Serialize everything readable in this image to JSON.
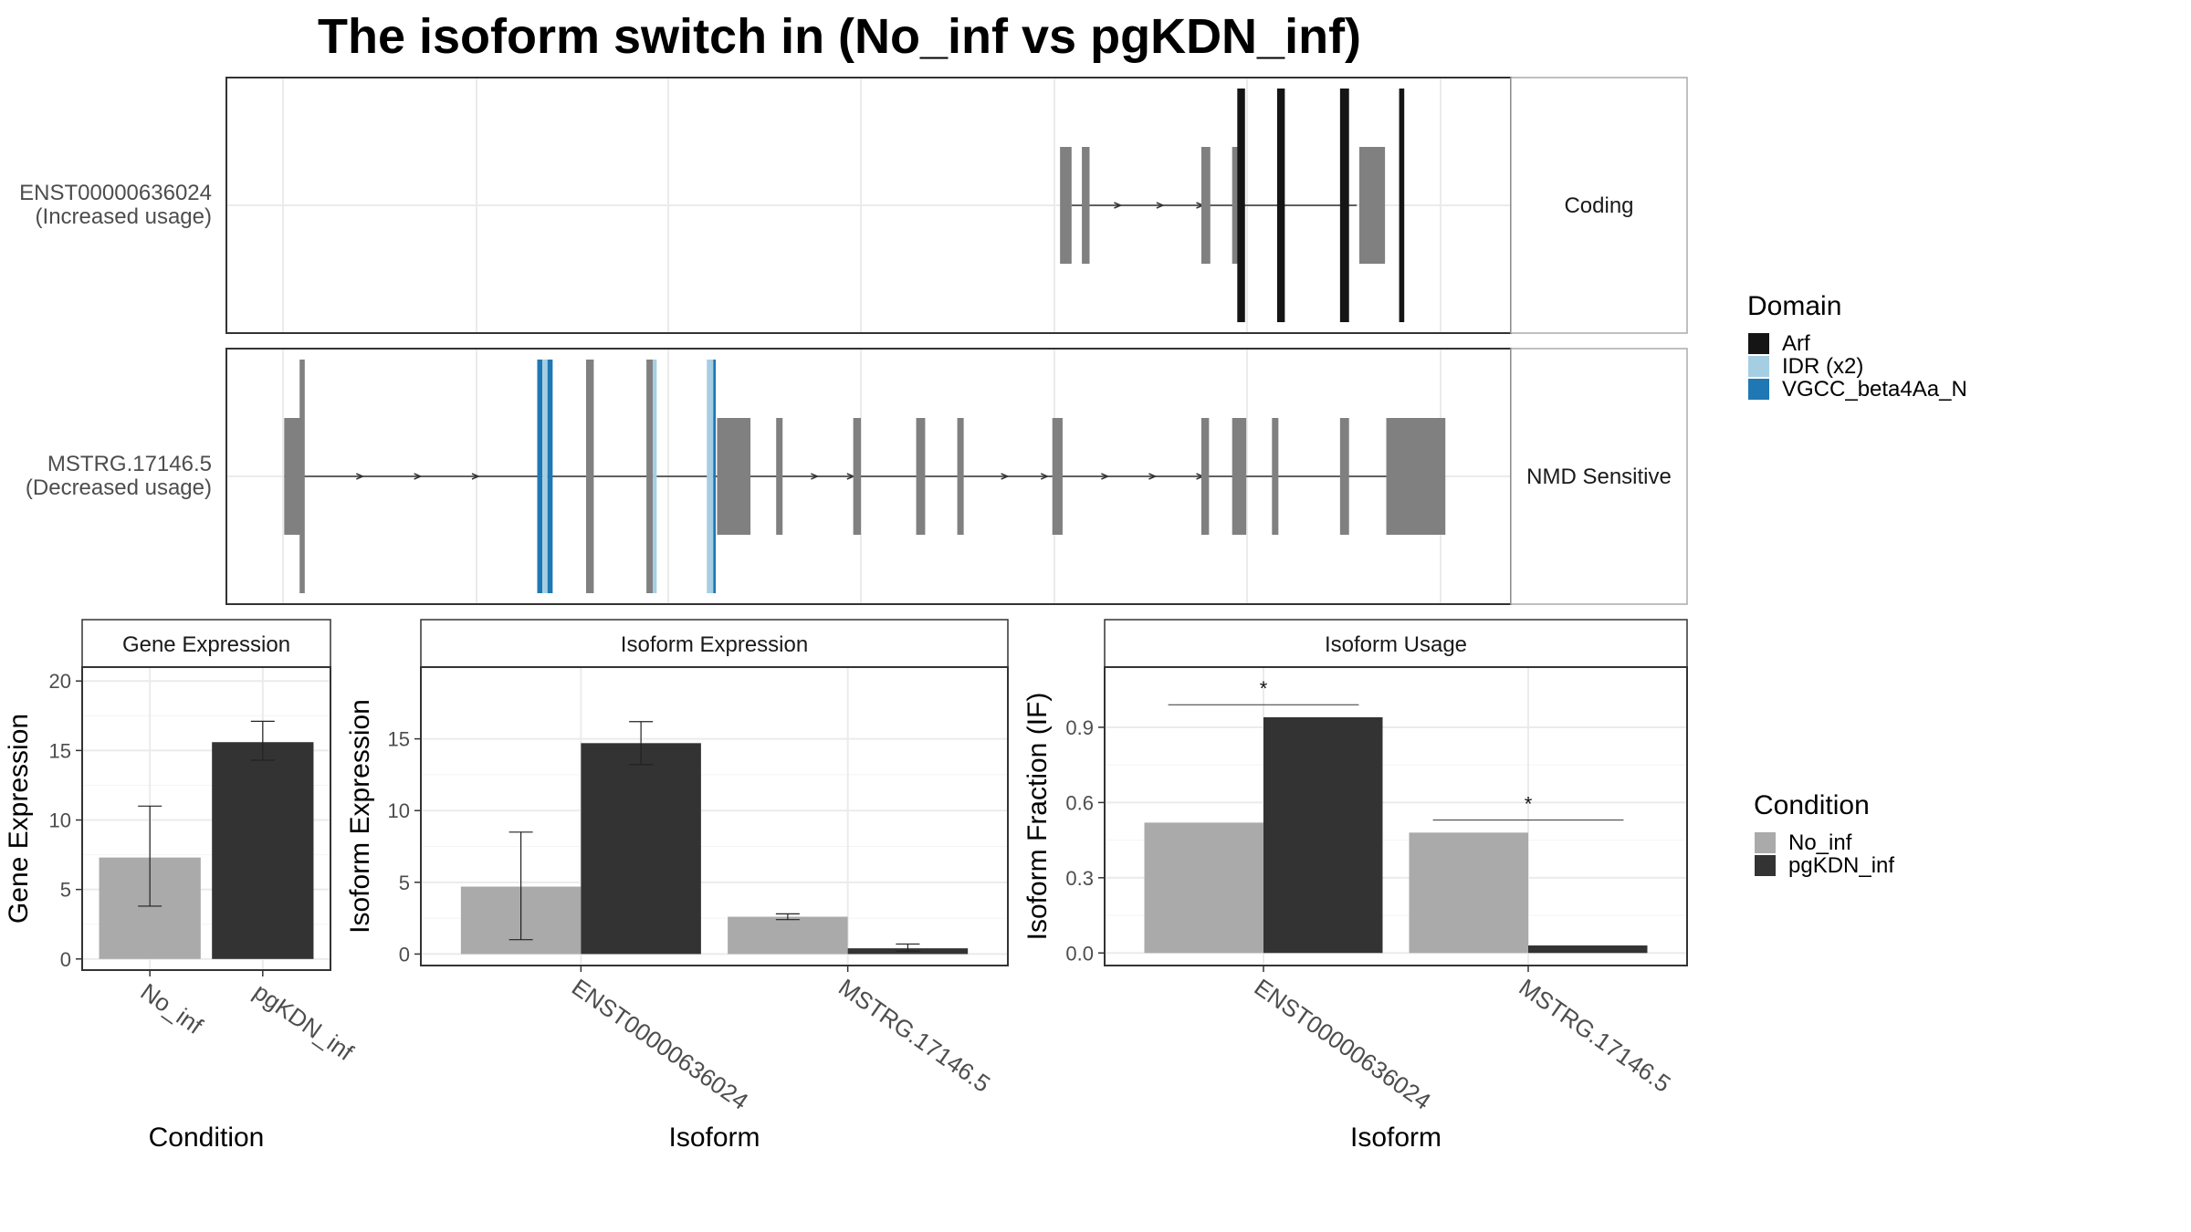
{
  "title": "The isoform switch in  (No_inf vs pgKDN_inf)",
  "colors": {
    "no_inf": "#aaaaaa",
    "pgkdn_inf": "#333333",
    "exon": "#808080",
    "arf": "#151515",
    "idr": "#a6cee3",
    "vgcc": "#1f78b4",
    "grid": "#ebebeb",
    "panel_border": "#333333",
    "strip_border": "#aaaaaa"
  },
  "domain_legend": {
    "title": "Domain",
    "entries": [
      {
        "label": "Arf",
        "color": "#151515"
      },
      {
        "label": "IDR (x2)",
        "color": "#a6cee3"
      },
      {
        "label": "VGCC_beta4Aa_N",
        "color": "#1f78b4"
      }
    ]
  },
  "condition_legend": {
    "title": "Condition",
    "entries": [
      {
        "label": "No_inf",
        "color": "#aaaaaa"
      },
      {
        "label": "pgKDN_inf",
        "color": "#333333"
      }
    ]
  },
  "chart_data": [
    {
      "type": "isoform_structure",
      "isoforms": [
        {
          "id": "ENST00000636024",
          "label_line1": "ENST00000636024",
          "label_line2": "(Increased usage)",
          "strip": "Coding",
          "intron_span": [
            0.658,
            0.88
          ],
          "exons": [
            [
              0.649,
              0.658
            ],
            [
              0.666,
              0.672
            ],
            [
              0.759,
              0.766
            ],
            [
              0.783,
              0.789
            ],
            [
              0.882,
              0.902
            ]
          ],
          "domains": [
            {
              "span": [
                0.787,
                0.793
              ],
              "type": "arf",
              "tall": true
            },
            {
              "span": [
                0.818,
                0.824
              ],
              "type": "arf",
              "tall": true
            },
            {
              "span": [
                0.867,
                0.874
              ],
              "type": "arf",
              "tall": true
            },
            {
              "span": [
                0.913,
                0.917
              ],
              "type": "arf",
              "tall": true
            }
          ],
          "arrows": [
            0.694,
            0.727,
            0.758
          ]
        },
        {
          "id": "MSTRG.17146.5",
          "label_line1": "MSTRG.17146.5",
          "label_line2": "(Decreased usage)",
          "strip": "NMD Sensitive",
          "intron_span": [
            0.045,
            0.903
          ],
          "exons": [
            [
              0.045,
              0.058
            ],
            [
              0.382,
              0.408
            ],
            [
              0.428,
              0.433
            ],
            [
              0.488,
              0.494
            ],
            [
              0.537,
              0.544
            ],
            [
              0.569,
              0.574
            ],
            [
              0.643,
              0.651
            ],
            [
              0.759,
              0.765
            ],
            [
              0.783,
              0.794
            ],
            [
              0.814,
              0.819
            ],
            [
              0.867,
              0.874
            ],
            [
              0.903,
              0.949
            ]
          ],
          "domains": [
            {
              "span": [
                0.057,
                0.061
              ],
              "type": "exon",
              "tall": true
            },
            {
              "span": [
                0.242,
                0.246
              ],
              "type": "vgcc",
              "tall": true
            },
            {
              "span": [
                0.246,
                0.25
              ],
              "type": "idr",
              "tall": true
            },
            {
              "span": [
                0.25,
                0.254
              ],
              "type": "vgcc",
              "tall": true
            },
            {
              "span": [
                0.28,
                0.286
              ],
              "type": "exon",
              "tall": true
            },
            {
              "span": [
                0.327,
                0.332
              ],
              "type": "exon",
              "tall": true
            },
            {
              "span": [
                0.332,
                0.335
              ],
              "type": "idr",
              "tall": true
            },
            {
              "span": [
                0.374,
                0.379
              ],
              "type": "idr",
              "tall": true
            },
            {
              "span": [
                0.379,
                0.381
              ],
              "type": "vgcc",
              "tall": true
            }
          ],
          "arrows": [
            0.104,
            0.149,
            0.194,
            0.458,
            0.486,
            0.606,
            0.637,
            0.684,
            0.721,
            0.758
          ]
        }
      ]
    },
    {
      "type": "bar",
      "strip": "Gene Expression",
      "xlabel": "Condition",
      "ylabel": "Gene Expression",
      "categories": [
        "No_inf",
        "pgKDN_inf"
      ],
      "values": [
        7.3,
        15.6
      ],
      "error_low": [
        3.8,
        14.3
      ],
      "error_high": [
        11.0,
        17.1
      ],
      "ylim": [
        -0.8,
        21.0
      ],
      "yticks": [
        0,
        5,
        10,
        15,
        20
      ]
    },
    {
      "type": "bar",
      "strip": "Isoform Expression",
      "xlabel": "Isoform",
      "ylabel": "Isoform Expression",
      "categories": [
        "ENST00000636024",
        "MSTRG.17146.5"
      ],
      "series": [
        {
          "name": "No_inf",
          "values": [
            4.7,
            2.6
          ],
          "error_low": [
            1.0,
            2.4
          ],
          "error_high": [
            8.5,
            2.8
          ]
        },
        {
          "name": "pgKDN_inf",
          "values": [
            14.7,
            0.4
          ],
          "error_low": [
            13.2,
            0.2
          ],
          "error_high": [
            16.2,
            0.7
          ]
        }
      ],
      "ylim": [
        -0.8,
        20.0
      ],
      "yticks": [
        0,
        5,
        10,
        15
      ]
    },
    {
      "type": "bar",
      "strip": "Isoform Usage",
      "xlabel": "Isoform",
      "ylabel": "Isoform Fraction (IF)",
      "categories": [
        "ENST00000636024",
        "MSTRG.17146.5"
      ],
      "series": [
        {
          "name": "No_inf",
          "values": [
            0.52,
            0.48
          ]
        },
        {
          "name": "pgKDN_inf",
          "values": [
            0.94,
            0.03
          ]
        }
      ],
      "significance": [
        {
          "category": "ENST00000636024",
          "label": "*",
          "y": 0.99
        },
        {
          "category": "MSTRG.17146.5",
          "label": "*",
          "y": 0.53
        }
      ],
      "ylim": [
        -0.05,
        1.14
      ],
      "yticks": [
        "0.0",
        "0.3",
        "0.6",
        "0.9"
      ]
    }
  ]
}
